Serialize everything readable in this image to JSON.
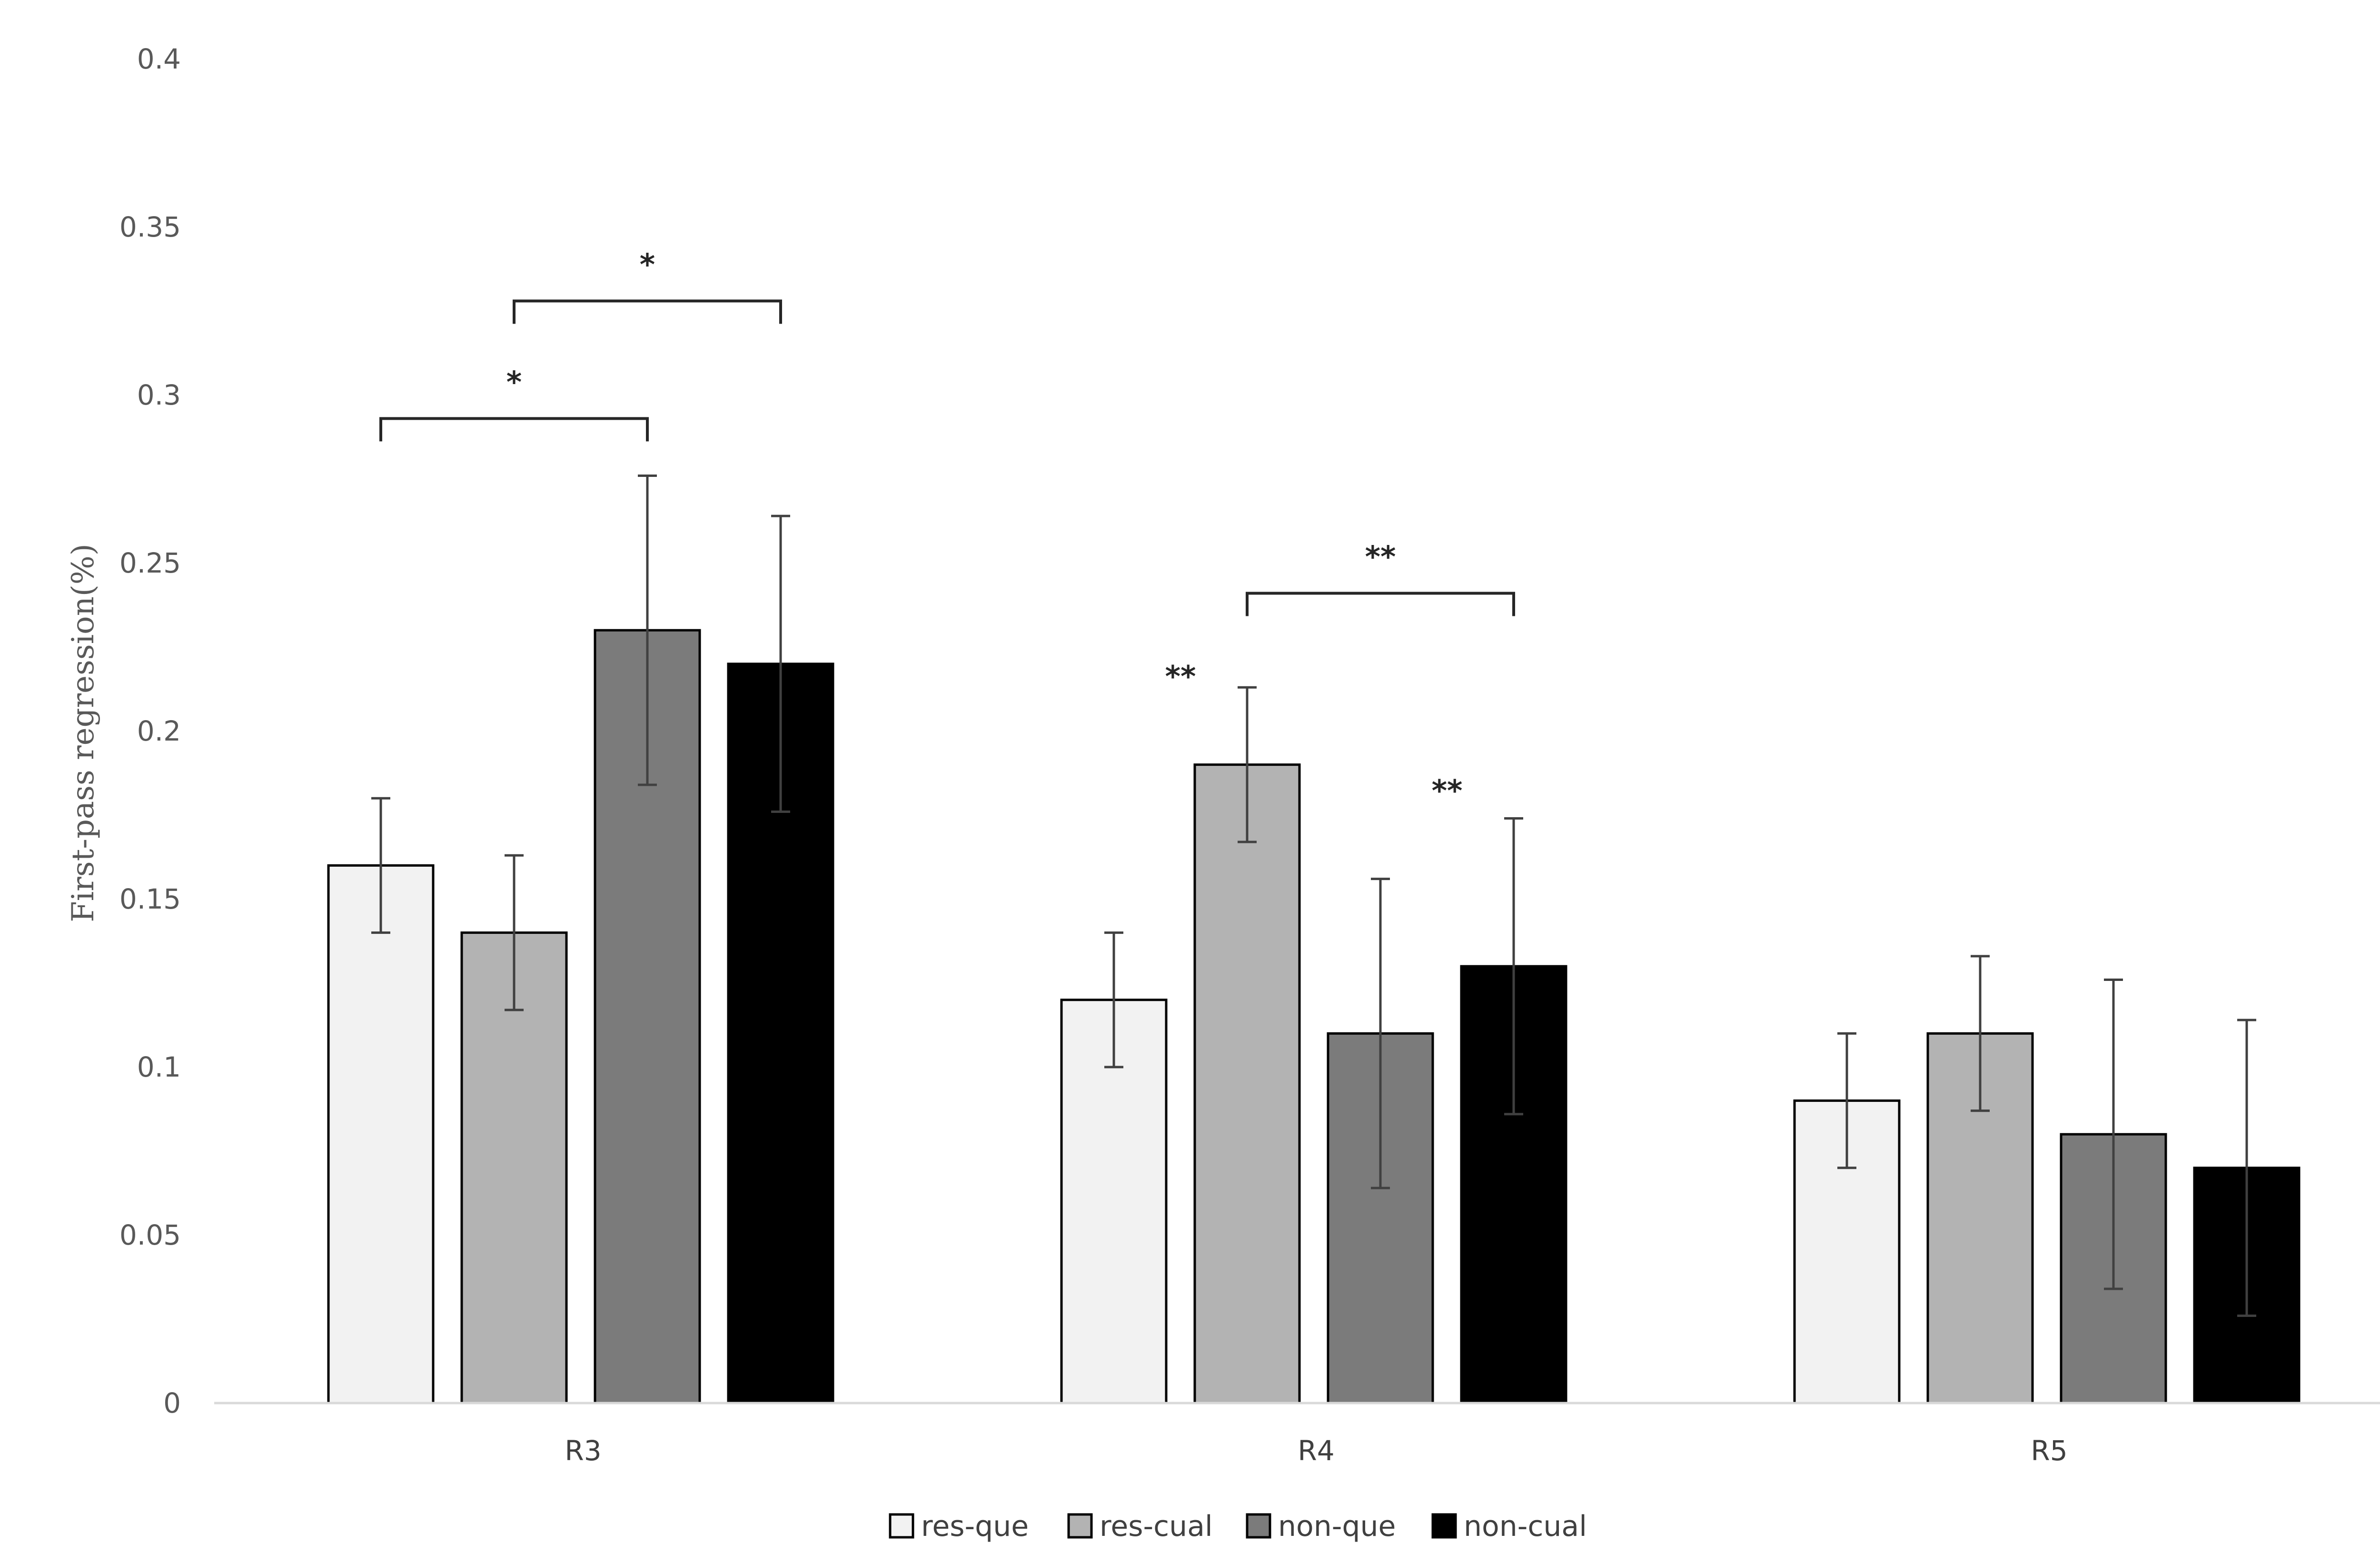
{
  "chart_data": {
    "type": "bar",
    "title": "",
    "xlabel": "",
    "ylabel": "First-pass regression(%)",
    "ylim": [
      0,
      0.4
    ],
    "yticks": [
      "0",
      "0.05",
      "0.1",
      "0.15",
      "0.2",
      "0.25",
      "0.3",
      "0.35",
      "0.4"
    ],
    "categories": [
      "R3",
      "R4",
      "R5"
    ],
    "legend_position": "bottom-center",
    "series": [
      {
        "name": "res-que",
        "color": "#f2f2f2",
        "values": [
          0.16,
          0.12,
          0.09
        ],
        "errors": [
          0.02,
          0.02,
          0.02
        ]
      },
      {
        "name": "res-cual",
        "color": "#b3b3b3",
        "values": [
          0.14,
          0.19,
          0.11
        ],
        "errors": [
          0.023,
          0.023,
          0.023
        ]
      },
      {
        "name": "non-que",
        "color": "#7b7b7b",
        "values": [
          0.23,
          0.11,
          0.08
        ],
        "errors": [
          0.046,
          0.046,
          0.046
        ]
      },
      {
        "name": "non-cual",
        "color": "#000000",
        "values": [
          0.22,
          0.13,
          0.07
        ],
        "errors": [
          0.044,
          0.044,
          0.044
        ]
      }
    ],
    "annotations": [
      {
        "type": "bracket",
        "category": "R3",
        "from_series": 0,
        "to_series": 2,
        "y": 0.293,
        "label": "*"
      },
      {
        "type": "bracket",
        "category": "R3",
        "from_series": 1,
        "to_series": 3,
        "y": 0.328,
        "label": "*"
      },
      {
        "type": "bracket",
        "category": "R4",
        "from_series": 1,
        "to_series": 3,
        "y": 0.241,
        "label": "**"
      },
      {
        "type": "label",
        "category": "R4",
        "series": 1,
        "y": 0.216,
        "label": "**"
      },
      {
        "type": "label",
        "category": "R4",
        "series": 3,
        "y": 0.182,
        "label": "**"
      }
    ]
  }
}
